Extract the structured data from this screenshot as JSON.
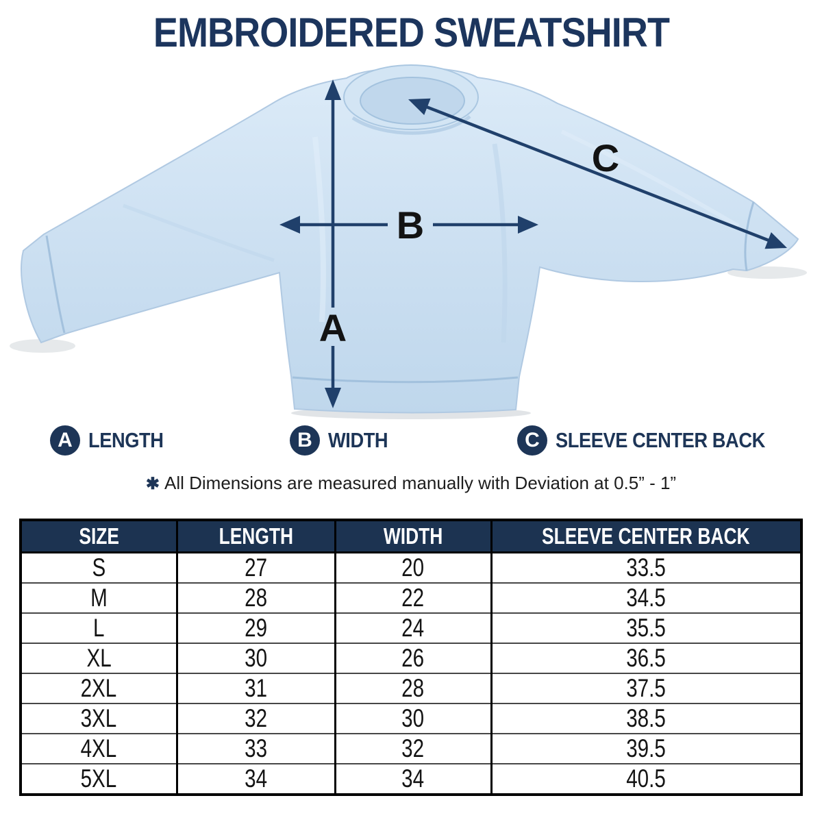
{
  "title": "EMBROIDERED SWEATSHIRT",
  "legend": {
    "items": [
      {
        "letter": "A",
        "label": "LENGTH"
      },
      {
        "letter": "B",
        "label": "WIDTH"
      },
      {
        "letter": "C",
        "label": "SLEEVE CENTER BACK"
      }
    ]
  },
  "note": {
    "symbol": "✱",
    "text": "All Dimensions are measured manually with Deviation at 0.5” - 1”"
  },
  "table": {
    "columns": [
      "SIZE",
      "LENGTH",
      "WIDTH",
      "SLEEVE CENTER BACK"
    ],
    "rows": [
      [
        "S",
        "27",
        "20",
        "33.5"
      ],
      [
        "M",
        "28",
        "22",
        "34.5"
      ],
      [
        "L",
        "29",
        "24",
        "35.5"
      ],
      [
        "XL",
        "30",
        "26",
        "36.5"
      ],
      [
        "2XL",
        "31",
        "28",
        "37.5"
      ],
      [
        "3XL",
        "32",
        "30",
        "38.5"
      ],
      [
        "4XL",
        "33",
        "32",
        "39.5"
      ],
      [
        "5XL",
        "34",
        "34",
        "40.5"
      ]
    ]
  },
  "colors": {
    "navy": "#1d3557",
    "arrow": "#20406b",
    "header_bg": "#1c3351",
    "title_navy": "#1c355d",
    "shirt_base": "#cbdff1",
    "shirt_light": "#dcebf8",
    "shirt_dark": "#b7d0e8",
    "shirt_line": "#9fbeda",
    "marker_letter": "#131313",
    "table_border": "#000000",
    "row_line": "#474747"
  }
}
